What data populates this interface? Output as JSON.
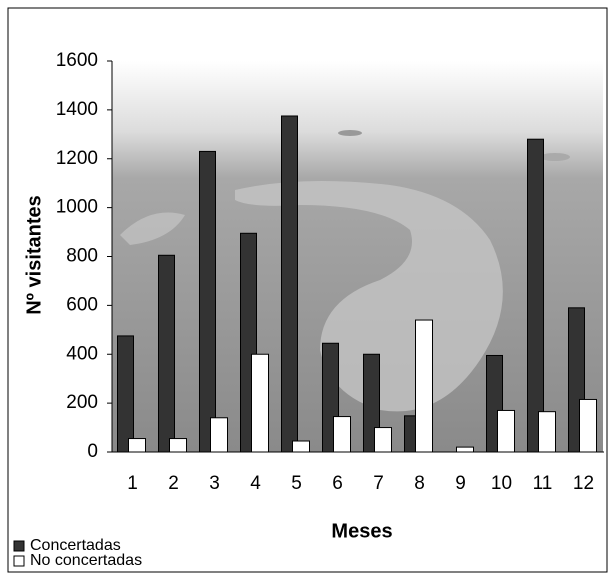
{
  "chart_data": {
    "type": "bar",
    "xlabel": "Meses",
    "ylabel": "Nº visitantes",
    "categories": [
      "1",
      "2",
      "3",
      "4",
      "5",
      "6",
      "7",
      "8",
      "9",
      "10",
      "11",
      "12"
    ],
    "series": [
      {
        "name": "Concertadas",
        "color": "#333333",
        "values": [
          475,
          805,
          1230,
          895,
          1375,
          445,
          400,
          148,
          0,
          395,
          1280,
          590
        ]
      },
      {
        "name": "No concertadas",
        "color": "#ffffff",
        "values": [
          55,
          55,
          140,
          400,
          45,
          145,
          100,
          540,
          20,
          170,
          165,
          215
        ]
      }
    ],
    "ylim": [
      0,
      1600
    ],
    "yticks": [
      0,
      200,
      400,
      600,
      800,
      1000,
      1200,
      1400,
      1600
    ],
    "legend": "bottom-left"
  }
}
